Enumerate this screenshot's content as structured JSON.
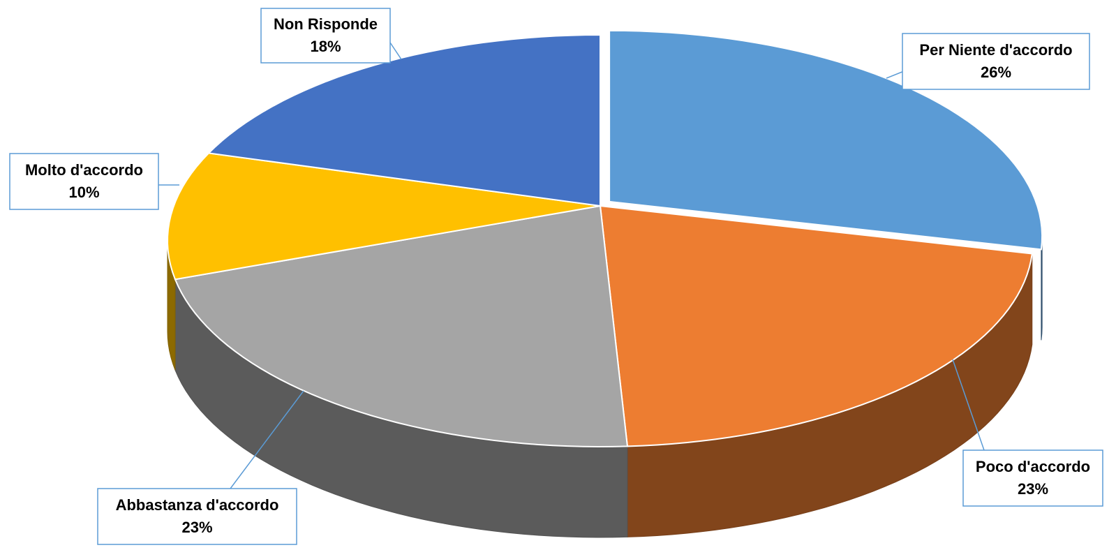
{
  "chart_data": {
    "type": "pie3d",
    "categories": [
      "Per Niente d'accordo",
      "Poco d'accordo",
      "Abbastanza d'accordo",
      "Molto d'accordo",
      "Non Risponde"
    ],
    "values": [
      26,
      23,
      23,
      10,
      18
    ],
    "value_labels": [
      "26%",
      "23%",
      "23%",
      "10%",
      "18%"
    ],
    "colors": [
      "#5b9bd5",
      "#ed7d31",
      "#a5a5a5",
      "#ffc000",
      "#4472c4"
    ]
  }
}
